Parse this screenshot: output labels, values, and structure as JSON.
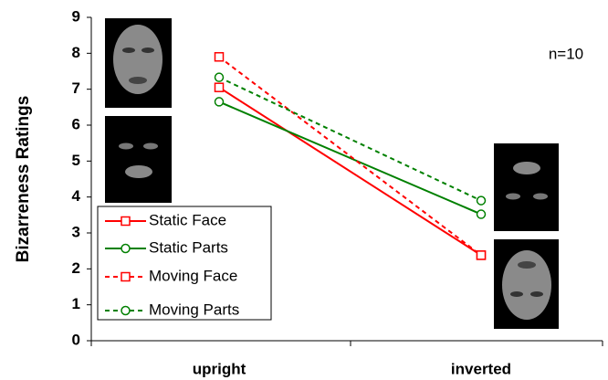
{
  "chart_data": {
    "type": "line",
    "y_label": "Bizarreness Ratings",
    "annotation": "n=10",
    "categories": [
      "upright",
      "inverted"
    ],
    "ylim": [
      0,
      9
    ],
    "yticks": [
      0,
      1,
      2,
      3,
      4,
      5,
      6,
      7,
      8,
      9
    ],
    "series": [
      {
        "name": "Static Face",
        "color": "#ff0000",
        "dashed": false,
        "marker": "square",
        "values": [
          7.05,
          2.38
        ]
      },
      {
        "name": "Static Parts",
        "color": "#008000",
        "dashed": false,
        "marker": "circle",
        "values": [
          6.65,
          3.52
        ]
      },
      {
        "name": "Moving Face",
        "color": "#ff0000",
        "dashed": true,
        "marker": "square",
        "values": [
          7.9,
          2.38
        ]
      },
      {
        "name": "Moving Parts",
        "color": "#008000",
        "dashed": true,
        "marker": "circle",
        "values": [
          7.33,
          3.9
        ]
      }
    ]
  }
}
